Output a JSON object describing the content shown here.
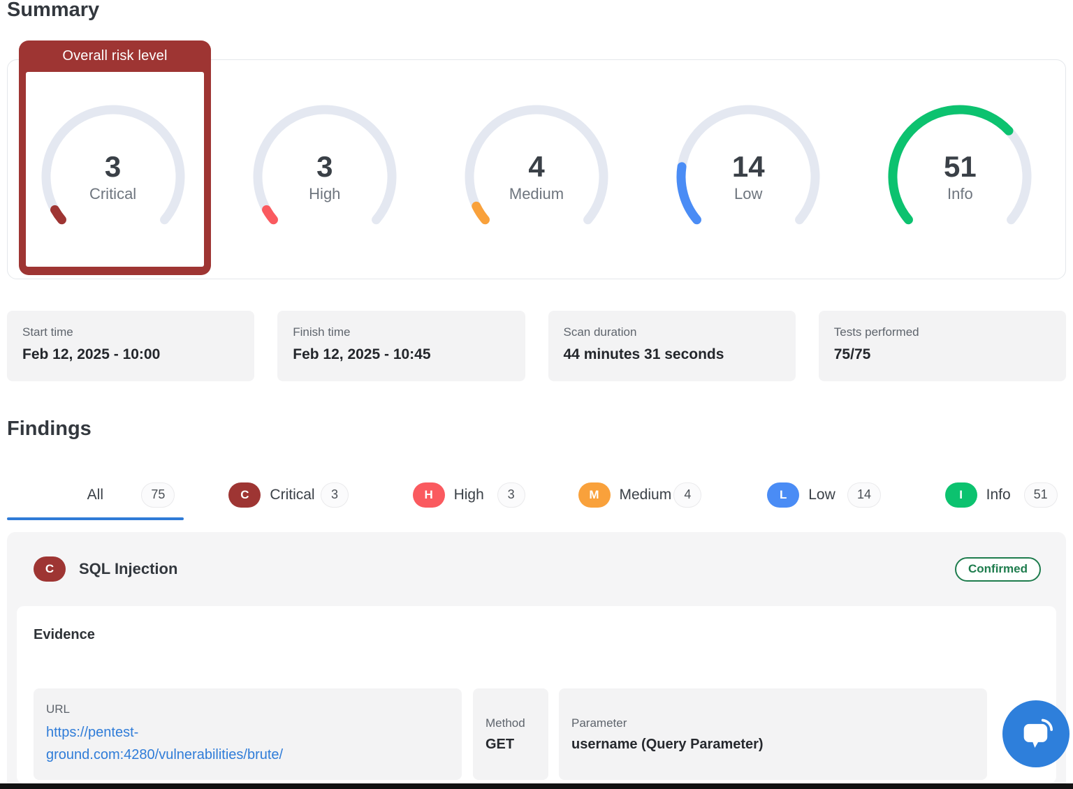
{
  "summary": {
    "title": "Summary",
    "overall_risk_label": "Overall risk level",
    "gauge_max": 75,
    "gauges": [
      {
        "label": "Critical",
        "value": 3,
        "color": "#9E3533"
      },
      {
        "label": "High",
        "value": 3,
        "color": "#FA5A5F"
      },
      {
        "label": "Medium",
        "value": 4,
        "color": "#F9A13B"
      },
      {
        "label": "Low",
        "value": 14,
        "color": "#4A8CF5"
      },
      {
        "label": "Info",
        "value": 51,
        "color": "#0CC26F"
      }
    ],
    "stats": [
      {
        "label": "Start time",
        "value": "Feb 12, 2025 - 10:00"
      },
      {
        "label": "Finish time",
        "value": "Feb 12, 2025 - 10:45"
      },
      {
        "label": "Scan duration",
        "value": "44 minutes 31 seconds"
      },
      {
        "label": "Tests performed",
        "value": "75/75"
      }
    ]
  },
  "findings": {
    "title": "Findings",
    "active_tab": "All",
    "tabs": [
      {
        "label": "All",
        "count": "75"
      },
      {
        "label": "Critical",
        "count": "3",
        "badge": "C"
      },
      {
        "label": "High",
        "count": "3",
        "badge": "H"
      },
      {
        "label": "Medium",
        "count": "4",
        "badge": "M"
      },
      {
        "label": "Low",
        "count": "14",
        "badge": "L"
      },
      {
        "label": "Info",
        "count": "51",
        "badge": "I"
      }
    ],
    "finding": {
      "severity_badge": "C",
      "title": "SQL Injection",
      "status_badge": "Confirmed",
      "evidence": {
        "heading": "Evidence",
        "url_label": "URL",
        "url_value": "https://pentest-ground.com:4280/vulnerabilities/brute/",
        "method_label": "Method",
        "method_value": "GET",
        "parameter_label": "Parameter",
        "parameter_value": "username (Query Parameter)"
      }
    }
  },
  "colors": {
    "critical": "#9E3533",
    "high": "#FA5A5F",
    "medium": "#F9A13B",
    "low": "#4A8CF5",
    "info": "#0CC26F",
    "gauge_track": "#E4E8F1",
    "active_tab_underline": "#2F7BD7",
    "link": "#2F7CD8",
    "confirmed_badge": "#1E7C4D",
    "chat_bubble": "#2E7FDB"
  },
  "chart_data": {
    "type": "gauge-set",
    "title": "Summary",
    "categories": [
      "Critical",
      "High",
      "Medium",
      "Low",
      "Info"
    ],
    "values": [
      3,
      3,
      4,
      14,
      51
    ],
    "max": 75,
    "colors": [
      "#9E3533",
      "#FA5A5F",
      "#F9A13B",
      "#4A8CF5",
      "#0CC26F"
    ],
    "arc_sweep_degrees": 260
  }
}
